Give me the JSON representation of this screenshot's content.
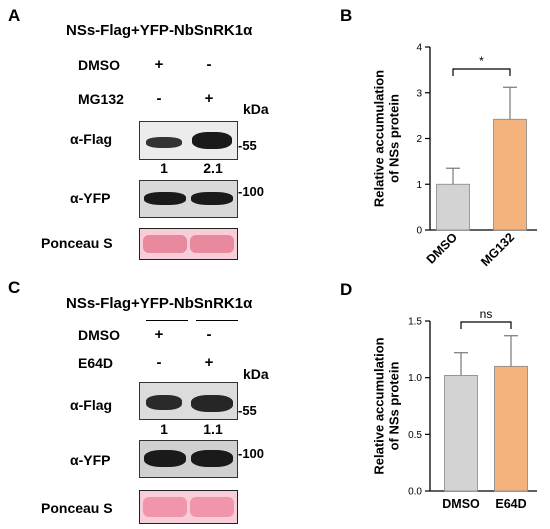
{
  "panels": {
    "A": {
      "letter": "A",
      "header": "NSs-Flag+YFP-NbSnRK1α",
      "treatments": [
        {
          "label": "DMSO",
          "signs": [
            "+",
            "-"
          ]
        },
        {
          "label": "MG132",
          "signs": [
            "-",
            "+"
          ]
        }
      ],
      "kda": "kDa",
      "blots": [
        {
          "label": "α-Flag",
          "marker": "-55",
          "quant": [
            "1",
            "2.1"
          ],
          "intensity": [
            0.55,
            1.0
          ]
        },
        {
          "label": "α-YFP",
          "marker": "-100",
          "quant": null,
          "intensity": [
            0.9,
            0.9
          ]
        },
        {
          "label": "Ponceau S",
          "marker": "",
          "quant": null
        }
      ]
    },
    "C": {
      "letter": "C",
      "header": "NSs-Flag+YFP-NbSnRK1α",
      "treatments": [
        {
          "label": "DMSO",
          "signs": [
            "+",
            "-"
          ]
        },
        {
          "label": "E64D",
          "signs": [
            "-",
            "+"
          ]
        }
      ],
      "kda": "kDa",
      "blots": [
        {
          "label": "α-Flag",
          "marker": "-55",
          "quant": [
            "1",
            "1.1"
          ],
          "intensity": [
            0.75,
            0.8
          ]
        },
        {
          "label": "α-YFP",
          "marker": "-100",
          "quant": null,
          "intensity": [
            0.95,
            0.95
          ]
        },
        {
          "label": "Ponceau S",
          "marker": "",
          "quant": null
        }
      ]
    }
  },
  "chart_data": [
    {
      "panel": "B",
      "type": "bar",
      "categories": [
        "DMSO",
        "MG132"
      ],
      "values": [
        1.0,
        2.42
      ],
      "errors": [
        0.35,
        0.7
      ],
      "colors": [
        "#d3d3d3",
        "#f4b27c"
      ],
      "ylabel": "Relative accumulation\nof NSs protein",
      "ylim": [
        0,
        4
      ],
      "yticks": [
        "0",
        "1",
        "2",
        "3",
        "4"
      ],
      "yticks_values": [
        0,
        1,
        2,
        3,
        4
      ],
      "significance": "*"
    },
    {
      "panel": "D",
      "type": "bar",
      "categories": [
        "DMSO",
        "E64D"
      ],
      "values": [
        1.02,
        1.1
      ],
      "errors": [
        0.2,
        0.27
      ],
      "colors": [
        "#d3d3d3",
        "#f4b27c"
      ],
      "ylabel": "Relative accumulation\nof NSs protein",
      "ylim": [
        0,
        1.5
      ],
      "yticks": [
        "0.0",
        "0.5",
        "1.0",
        "1.5"
      ],
      "yticks_values": [
        0,
        0.5,
        1.0,
        1.5
      ],
      "significance": "ns"
    }
  ]
}
